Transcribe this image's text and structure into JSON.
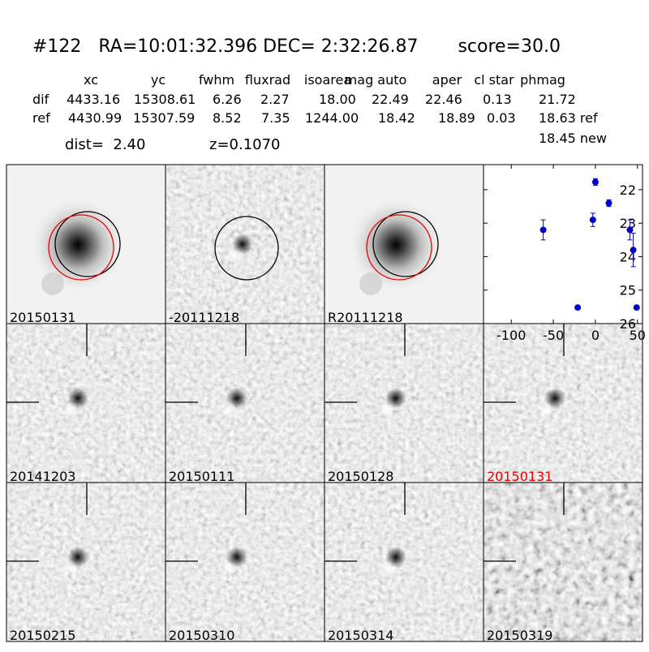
{
  "header": {
    "title": "#122   RA=10:01:32.396 DEC= 2:32:26.87       score=30.0",
    "columns": [
      "xc",
      "yc",
      "fwhm",
      "fluxrad",
      "isoarea",
      "mag auto",
      "aper",
      "cl star",
      "phmag"
    ],
    "rows": [
      [
        "dif",
        "4433.16",
        "15308.61",
        "6.26",
        "2.27",
        "18.00",
        "22.49",
        "22.46",
        "0.13",
        "21.72"
      ],
      [
        "ref",
        "4430.99",
        "15307.59",
        "8.52",
        "7.35",
        "1244.00",
        "18.42",
        "18.89",
        "0.03",
        "18.63 ref"
      ]
    ],
    "extra": "18.45 new",
    "dist": "dist=  2.40",
    "z": "z=0.1070"
  },
  "panels": [
    "20150131",
    "-20111218",
    "R20111218",
    "20141203",
    "20150111",
    "20150128",
    "20150131",
    "20150215",
    "20150310",
    "20150314",
    "20150319"
  ],
  "chart_data": {
    "type": "scatter",
    "x": [
      -62,
      -21,
      -3,
      0,
      16,
      41,
      45,
      49
    ],
    "values": [
      23.2,
      25.52,
      22.9,
      21.77,
      22.4,
      23.2,
      23.8,
      25.52
    ],
    "errors": [
      0.3,
      0.05,
      0.2,
      0.1,
      0.1,
      0.3,
      0.5,
      0.05
    ],
    "color": "#0000cc",
    "xlim": [
      -133,
      56
    ],
    "xticks": [
      -100,
      -50,
      0,
      50
    ],
    "ylim": [
      26,
      21.25
    ],
    "yticks": [
      22,
      23,
      24,
      25,
      26
    ]
  }
}
